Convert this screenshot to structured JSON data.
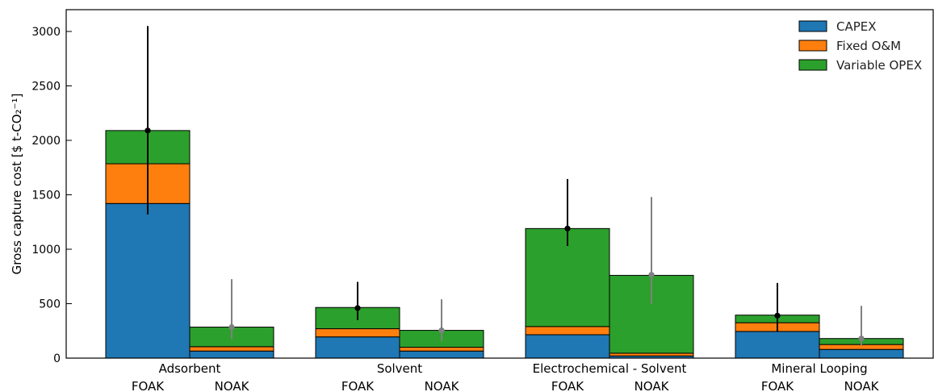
{
  "chart_data": {
    "type": "bar",
    "stacked": true,
    "ylabel": "Gross capture cost [$ t-CO₂⁻¹]",
    "ylim": [
      0,
      3200
    ],
    "yticks": [
      0,
      500,
      1000,
      1500,
      2000,
      2500,
      3000
    ],
    "groups": [
      "Adsorbent",
      "Solvent",
      "Electrochemical - Solvent",
      "Mineral Looping"
    ],
    "bar_labels": [
      "FOAK",
      "NOAK"
    ],
    "legend_position": "top-right",
    "series": [
      {
        "name": "CAPEX",
        "color": "#1f77b4",
        "values": [
          [
            1420,
            65
          ],
          [
            195,
            65
          ],
          [
            215,
            20
          ],
          [
            245,
            80
          ]
        ]
      },
      {
        "name": "Fixed O&M",
        "color": "#ff7f0e",
        "values": [
          [
            365,
            40
          ],
          [
            75,
            35
          ],
          [
            75,
            25
          ],
          [
            80,
            45
          ]
        ]
      },
      {
        "name": "Variable OPEX",
        "color": "#2ca02c",
        "values": [
          [
            305,
            180
          ],
          [
            195,
            155
          ],
          [
            900,
            715
          ],
          [
            70,
            55
          ]
        ]
      }
    ],
    "points": [
      {
        "value": [
          2090,
          285
        ],
        "low": [
          1320,
          175
        ],
        "high": [
          3050,
          725
        ]
      },
      {
        "value": [
          460,
          255
        ],
        "low": [
          350,
          160
        ],
        "high": [
          700,
          540
        ]
      },
      {
        "value": [
          1190,
          765
        ],
        "low": [
          1030,
          495
        ],
        "high": [
          1645,
          1480
        ]
      },
      {
        "value": [
          390,
          180
        ],
        "low": [
          245,
          115
        ],
        "high": [
          690,
          480
        ]
      }
    ],
    "point_colors": [
      "#000000",
      "#808080"
    ]
  }
}
